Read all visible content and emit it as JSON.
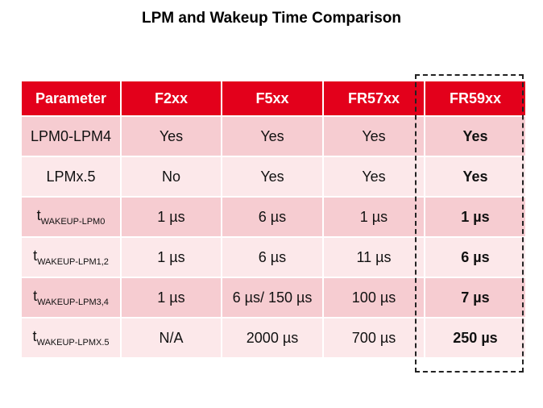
{
  "title": "LPM and Wakeup Time Comparison",
  "table": {
    "header": [
      "Parameter",
      "F2xx",
      "F5xx",
      "FR57xx",
      "FR59xx"
    ],
    "rows": [
      [
        {
          "text": "LPM0-LPM4"
        },
        "Yes",
        "Yes",
        "Yes",
        "Yes"
      ],
      [
        {
          "text": "LPMx.5"
        },
        "No",
        "Yes",
        "Yes",
        "Yes"
      ],
      [
        {
          "text": "t",
          "sub": "WAKEUP-LPM0"
        },
        "1 µs",
        "6 µs",
        "1 µs",
        "1 µs"
      ],
      [
        {
          "text": "t",
          "sub": "WAKEUP-LPM1,2"
        },
        "1 µs",
        "6 µs",
        "11 µs",
        "6 µs"
      ],
      [
        {
          "text": "t",
          "sub": "WAKEUP-LPM3,4"
        },
        "1 µs",
        "6 µs/ 150 µs",
        "100 µs",
        "7 µs"
      ],
      [
        {
          "text": "t",
          "sub": "WAKEUP-LPMX.5"
        },
        "N/A",
        "2000 µs",
        "700 µs",
        "250 µs"
      ]
    ]
  }
}
